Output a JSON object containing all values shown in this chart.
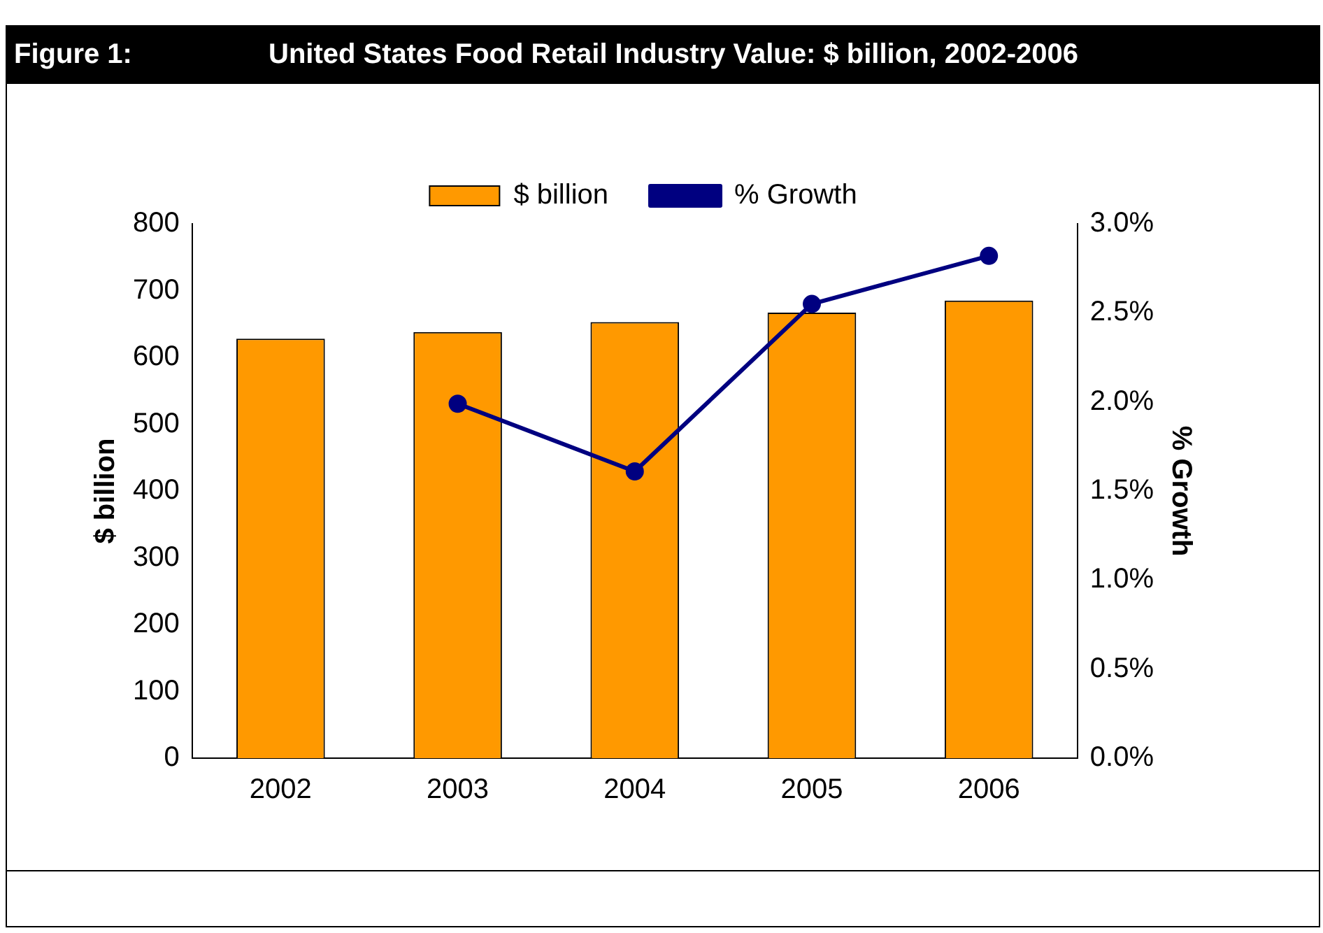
{
  "chart_data": {
    "type": "bar",
    "title": "Figure 1:",
    "subtitle": "United States Food Retail Industry Value: $ billion, 2002-2006",
    "categories": [
      "2002",
      "2003",
      "2004",
      "2005",
      "2006"
    ],
    "series": [
      {
        "name": "$ billion",
        "color": "#ff9900",
        "values": [
          628,
          638,
          653,
          667,
          685
        ]
      },
      {
        "name": "% Growth",
        "type": "line",
        "color": "#000080",
        "axis": "y2",
        "values": [
          null,
          1.99,
          1.61,
          2.55,
          2.82
        ]
      }
    ],
    "ylabel": "$ billion",
    "y2label": "% Growth",
    "ylim": [
      0,
      800
    ],
    "yticks": [
      0,
      100,
      200,
      300,
      400,
      500,
      600,
      700,
      800
    ],
    "y2lim": [
      0,
      3
    ],
    "y2ticks": [
      {
        "value": 0,
        "label": "0.0%"
      },
      {
        "value": 0.5,
        "label": "0.5%"
      },
      {
        "value": 1,
        "label": "1.0%"
      },
      {
        "value": 1.5,
        "label": "1.5%"
      },
      {
        "value": 2,
        "label": "2.0%"
      },
      {
        "value": 2.5,
        "label": "2.5%"
      },
      {
        "value": 3,
        "label": "3.0%"
      }
    ],
    "legend": "top",
    "marker": "circle",
    "grid": false
  }
}
